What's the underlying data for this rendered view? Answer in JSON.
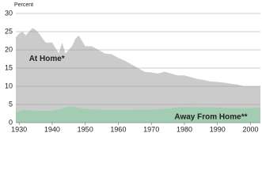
{
  "chart_data": {
    "type": "area",
    "y_label": "Percent",
    "x": [
      1929,
      1930,
      1931,
      1932,
      1934,
      1935,
      1936,
      1938,
      1940,
      1942,
      1943,
      1944,
      1946,
      1947,
      1948,
      1950,
      1952,
      1954,
      1956,
      1958,
      1960,
      1962,
      1964,
      1966,
      1968,
      1970,
      1972,
      1974,
      1976,
      1978,
      1980,
      1982,
      1984,
      1986,
      1988,
      1990,
      1992,
      1994,
      1996,
      1998,
      2000,
      2002,
      2003
    ],
    "series": [
      {
        "name": "At Home*",
        "color": "#cbcbcb",
        "values": [
          23.4,
          24.5,
          25,
          24,
          26,
          25.5,
          24.5,
          22,
          22,
          19,
          22,
          19,
          21,
          23,
          24,
          21,
          21,
          20,
          19,
          18.8,
          17.8,
          17,
          16,
          15,
          14,
          13.8,
          13.5,
          14,
          13.5,
          13,
          13,
          12.5,
          12,
          11.7,
          11.3,
          11.2,
          11,
          10.7,
          10.5,
          10,
          10,
          10,
          10
        ]
      },
      {
        "name": "Away From Home**",
        "color": "#a3cdb3",
        "values": [
          3,
          3.2,
          3.4,
          3.5,
          3.3,
          3.2,
          3.2,
          3.3,
          3.3,
          3.6,
          3.9,
          4.2,
          4.5,
          4.3,
          4.1,
          3.8,
          3.7,
          3.6,
          3.5,
          3.5,
          3.5,
          3.5,
          3.5,
          3.6,
          3.6,
          3.6,
          3.7,
          3.8,
          4,
          4.2,
          4.3,
          4.3,
          4.2,
          4.2,
          4.2,
          4.2,
          4.1,
          4,
          4,
          4,
          4,
          4.1,
          4.1
        ]
      }
    ],
    "xlim": [
      1929,
      2003
    ],
    "xticks": [
      1930,
      1940,
      1950,
      1960,
      1970,
      1980,
      1990,
      2000
    ],
    "ylim": [
      0,
      30
    ],
    "yticks": [
      0,
      5,
      10,
      15,
      20,
      25,
      30
    ],
    "grid": true
  }
}
